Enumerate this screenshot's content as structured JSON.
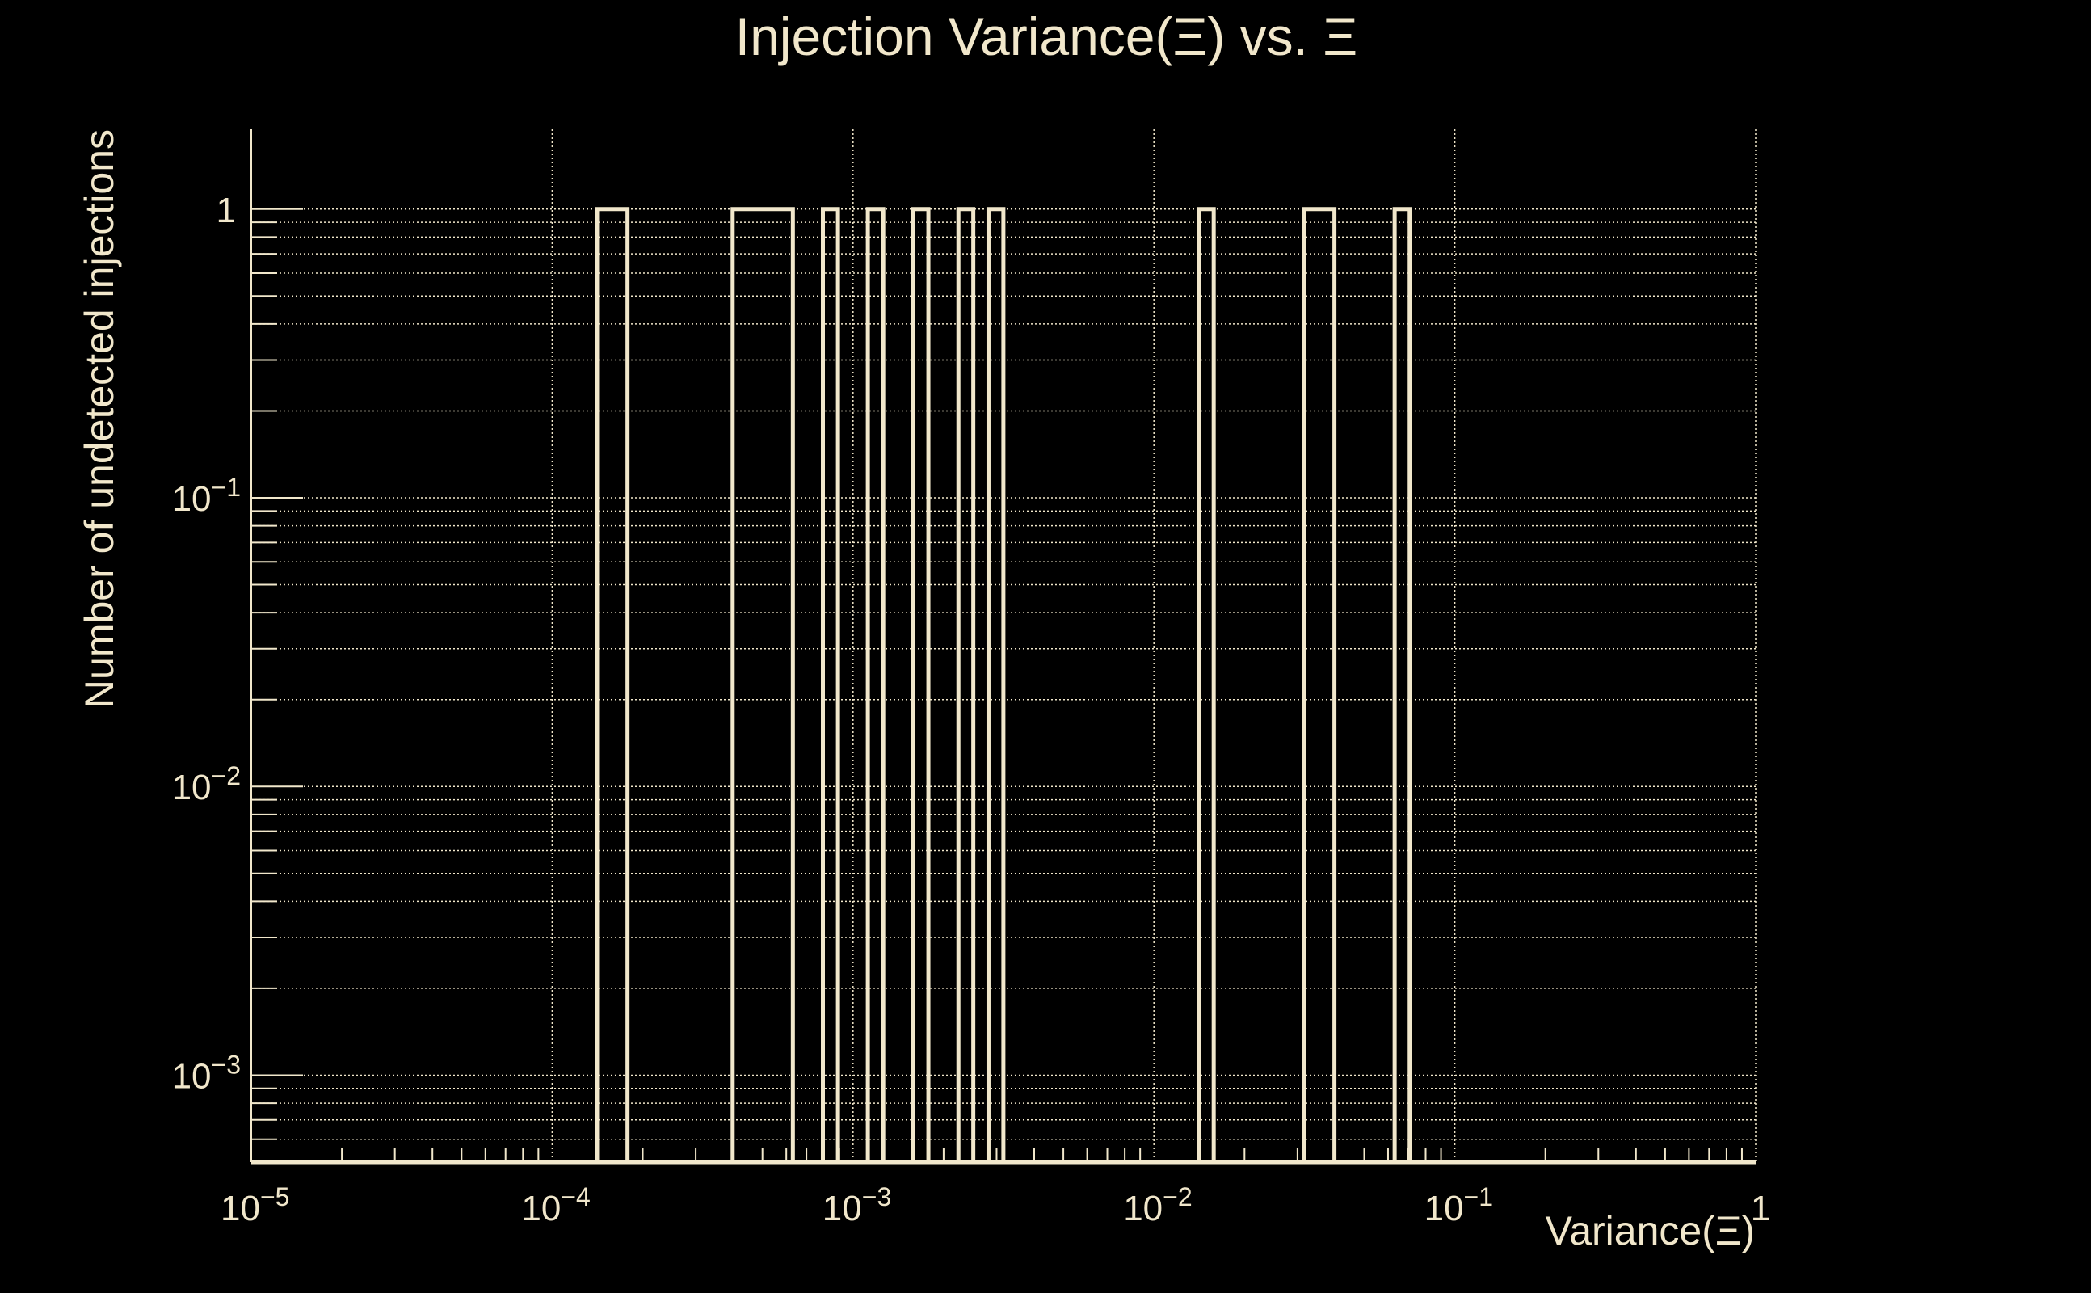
{
  "colors": {
    "background": "#000000",
    "foreground": "#f1e7cb"
  },
  "chart_data": {
    "type": "bar",
    "histogram_style": "step",
    "title": "Injection Variance(Ξ) vs. Ξ",
    "xlabel": "Variance(Ξ)",
    "ylabel": "Number of undetected injections",
    "xscale": "log",
    "yscale": "log",
    "xlim": [
      1e-05,
      1
    ],
    "ylim": [
      0.0005,
      1.89
    ],
    "grid": true,
    "x_tick_labels": [
      {
        "value": 1e-05,
        "base": "10",
        "exp": "−5"
      },
      {
        "value": 0.0001,
        "base": "10",
        "exp": "−4"
      },
      {
        "value": 0.001,
        "base": "10",
        "exp": "−3"
      },
      {
        "value": 0.01,
        "base": "10",
        "exp": "−2"
      },
      {
        "value": 0.1,
        "base": "10",
        "exp": "−1"
      },
      {
        "value": 1,
        "base": "1",
        "exp": ""
      }
    ],
    "y_tick_labels": [
      {
        "value": 1,
        "base": "1",
        "exp": ""
      },
      {
        "value": 0.1,
        "base": "10",
        "exp": "−1"
      },
      {
        "value": 0.01,
        "base": "10",
        "exp": "−2"
      },
      {
        "value": 0.001,
        "base": "10",
        "exp": "−3"
      }
    ],
    "bins": [
      {
        "x_low": 0.000141,
        "x_high": 0.000178,
        "value": 1
      },
      {
        "x_low": 0.000398,
        "x_high": 0.000631,
        "value": 1
      },
      {
        "x_low": 0.000794,
        "x_high": 0.000891,
        "value": 1
      },
      {
        "x_low": 0.00112,
        "x_high": 0.00126,
        "value": 1
      },
      {
        "x_low": 0.00158,
        "x_high": 0.00178,
        "value": 1
      },
      {
        "x_low": 0.00224,
        "x_high": 0.00251,
        "value": 1
      },
      {
        "x_low": 0.00282,
        "x_high": 0.00316,
        "value": 1
      },
      {
        "x_low": 0.0141,
        "x_high": 0.0158,
        "value": 1
      },
      {
        "x_low": 0.0316,
        "x_high": 0.0398,
        "value": 1
      },
      {
        "x_low": 0.0631,
        "x_high": 0.0708,
        "value": 1
      }
    ]
  }
}
